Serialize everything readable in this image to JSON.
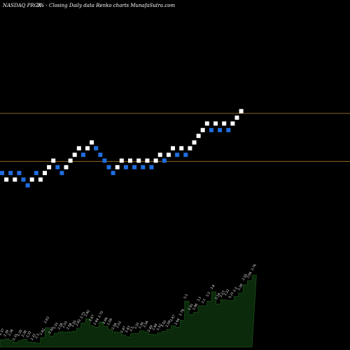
{
  "header": {
    "exchange_ticker": "NASDAQ PRGX",
    "change": "3% -",
    "chart_name": "Closing Daily data  Renko  charts MunafaSutra.com"
  },
  "chart_data": {
    "type": "renko",
    "colors": {
      "background": "#000000",
      "up_brick": "#ffffff",
      "down_brick": "#1e6fe0",
      "reference_line": "#b8862a",
      "volume_fill": "#0b2a0b",
      "volume_line": "#1f5a1f"
    },
    "reference_lines": [
      3.18,
      2.52
    ],
    "bricks": [
      {
        "top": 2.39,
        "direction": "down"
      },
      {
        "top": 2.3,
        "direction": "up"
      },
      {
        "top": 2.39,
        "direction": "down"
      },
      {
        "top": 2.3,
        "direction": "up"
      },
      {
        "top": 2.39,
        "direction": "down"
      },
      {
        "top": 2.3,
        "direction": "down"
      },
      {
        "top": 2.22,
        "direction": "down"
      },
      {
        "top": 2.3,
        "direction": "up"
      },
      {
        "top": 2.39,
        "direction": "down"
      },
      {
        "top": 2.3,
        "direction": "up"
      },
      {
        "top": 2.39,
        "direction": "up"
      },
      {
        "top": 2.47,
        "direction": "up"
      },
      {
        "top": 2.56,
        "direction": "up"
      },
      {
        "top": 2.47,
        "direction": "down"
      },
      {
        "top": 2.39,
        "direction": "down"
      },
      {
        "top": 2.47,
        "direction": "up"
      },
      {
        "top": 2.56,
        "direction": "up"
      },
      {
        "top": 2.64,
        "direction": "up"
      },
      {
        "top": 2.73,
        "direction": "up"
      },
      {
        "top": 2.64,
        "direction": "down"
      },
      {
        "top": 2.73,
        "direction": "up"
      },
      {
        "top": 2.81,
        "direction": "up"
      },
      {
        "top": 2.73,
        "direction": "down"
      },
      {
        "top": 2.64,
        "direction": "down"
      },
      {
        "top": 2.56,
        "direction": "down"
      },
      {
        "top": 2.47,
        "direction": "down"
      },
      {
        "top": 2.39,
        "direction": "down"
      },
      {
        "top": 2.47,
        "direction": "up"
      },
      {
        "top": 2.56,
        "direction": "up"
      },
      {
        "top": 2.47,
        "direction": "down"
      },
      {
        "top": 2.56,
        "direction": "up"
      },
      {
        "top": 2.47,
        "direction": "down"
      },
      {
        "top": 2.56,
        "direction": "up"
      },
      {
        "top": 2.47,
        "direction": "down"
      },
      {
        "top": 2.56,
        "direction": "up"
      },
      {
        "top": 2.47,
        "direction": "down"
      },
      {
        "top": 2.56,
        "direction": "up"
      },
      {
        "top": 2.64,
        "direction": "up"
      },
      {
        "top": 2.56,
        "direction": "down"
      },
      {
        "top": 2.64,
        "direction": "up"
      },
      {
        "top": 2.73,
        "direction": "up"
      },
      {
        "top": 2.64,
        "direction": "down"
      },
      {
        "top": 2.73,
        "direction": "up"
      },
      {
        "top": 2.64,
        "direction": "down"
      },
      {
        "top": 2.73,
        "direction": "up"
      },
      {
        "top": 2.81,
        "direction": "up"
      },
      {
        "top": 2.9,
        "direction": "up"
      },
      {
        "top": 2.98,
        "direction": "up"
      },
      {
        "top": 3.07,
        "direction": "up"
      },
      {
        "top": 2.98,
        "direction": "down"
      },
      {
        "top": 3.07,
        "direction": "up"
      },
      {
        "top": 2.98,
        "direction": "down"
      },
      {
        "top": 3.07,
        "direction": "up"
      },
      {
        "top": 2.98,
        "direction": "down"
      },
      {
        "top": 3.07,
        "direction": "up"
      },
      {
        "top": 3.15,
        "direction": "up"
      },
      {
        "top": 3.24,
        "direction": "up"
      }
    ],
    "volume_labels": [
      "2.37",
      "2.39",
      "2.36",
      "2.31",
      "2.35",
      "2.38",
      "2.32",
      "2.31",
      "2.3",
      "2.42",
      "2.63",
      "2.45",
      "2.51",
      "2.54",
      "2.53",
      "2.54",
      "2.55",
      "2.62",
      "2.73",
      "2.82",
      "2.67",
      "2.64",
      "2.75",
      "2.66",
      "2.59",
      "2.54",
      "2.53",
      "2.47",
      "2.43",
      "2.5",
      "2.51",
      "2.56",
      "2.54",
      "2.49",
      "2.48",
      "2.52",
      "2.55",
      "2.59",
      "2.67",
      "2.64",
      "2.79",
      "3.2",
      "2.91",
      "2.96",
      "3.1",
      "3.1",
      "3.2",
      "3.4",
      "3.14",
      "3.23",
      "3.22",
      "3.21",
      "3.3",
      "3.38",
      "3.55",
      "3.64",
      "3.76"
    ]
  }
}
